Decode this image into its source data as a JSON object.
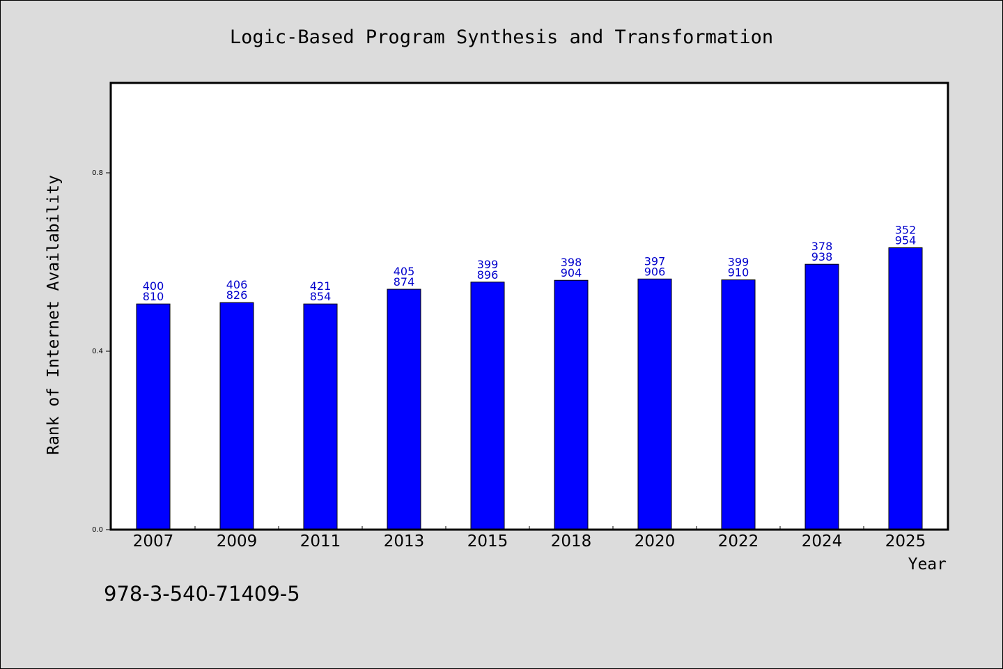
{
  "chart_data": {
    "type": "bar",
    "title": "Logic-Based Program Synthesis and Transformation",
    "xlabel": "Year",
    "ylabel": "Rank of Internet Availability",
    "categories": [
      "2007",
      "2009",
      "2011",
      "2013",
      "2015",
      "2018",
      "2020",
      "2022",
      "2024",
      "2025"
    ],
    "values": [
      0.506,
      0.509,
      0.506,
      0.539,
      0.555,
      0.559,
      0.562,
      0.56,
      0.595,
      0.632
    ],
    "labels_top": [
      "400",
      "406",
      "421",
      "405",
      "399",
      "398",
      "397",
      "399",
      "378",
      "352"
    ],
    "labels_bottom": [
      "810",
      "826",
      "854",
      "874",
      "896",
      "904",
      "906",
      "910",
      "938",
      "954"
    ],
    "yticks": [
      "0.0",
      "0.4",
      "0.8"
    ],
    "ylim": [
      0,
      1.0
    ],
    "grid": false,
    "bar_color": "#0000ff",
    "label_color": "#0000cc"
  },
  "footnote": "978-3-540-71409-5"
}
